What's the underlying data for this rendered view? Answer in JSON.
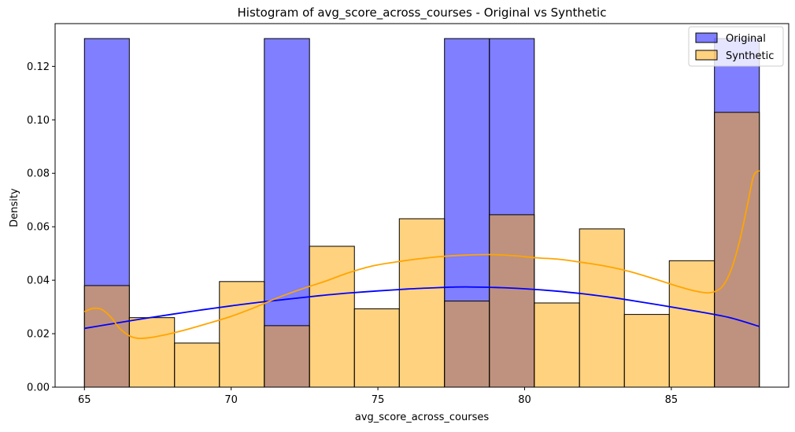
{
  "chart_data": {
    "type": "histogram",
    "title": "Histogram of avg_score_across_courses - Original vs Synthetic",
    "xlabel": "avg_score_across_courses",
    "ylabel": "Density",
    "xlim": [
      64.0,
      89.0
    ],
    "ylim": [
      0,
      0.136
    ],
    "xticks": [
      65,
      70,
      75,
      80,
      85
    ],
    "yticks": [
      0.0,
      0.02,
      0.04,
      0.06,
      0.08,
      0.1,
      0.12
    ],
    "ytick_labels": [
      "0.00",
      "0.02",
      "0.04",
      "0.06",
      "0.08",
      "0.10",
      "0.12"
    ],
    "grid": false,
    "legend_position": "top-right",
    "series": [
      {
        "name": "Original",
        "color": "#0000ff",
        "fill_opacity": 0.5,
        "line_color": "#0000ff",
        "bins": [
          {
            "x0": 65.0,
            "x1": 66.53,
            "density": 0.1304
          },
          {
            "x0": 71.13,
            "x1": 72.67,
            "density": 0.1304
          },
          {
            "x0": 77.27,
            "x1": 78.8,
            "density": 0.1304
          },
          {
            "x0": 78.8,
            "x1": 80.33,
            "density": 0.1304
          },
          {
            "x0": 86.47,
            "x1": 88.0,
            "density": 0.1304
          }
        ],
        "kde": [
          [
            65.0,
            0.022
          ],
          [
            66.0,
            0.0238
          ],
          [
            67.0,
            0.0256
          ],
          [
            68.0,
            0.0273
          ],
          [
            69.0,
            0.0289
          ],
          [
            70.0,
            0.0304
          ],
          [
            71.0,
            0.0318
          ],
          [
            72.0,
            0.033
          ],
          [
            73.0,
            0.0342
          ],
          [
            74.0,
            0.0352
          ],
          [
            75.0,
            0.036
          ],
          [
            76.0,
            0.0367
          ],
          [
            77.0,
            0.0372
          ],
          [
            77.5,
            0.0374
          ],
          [
            78.0,
            0.0375
          ],
          [
            79.0,
            0.0373
          ],
          [
            80.0,
            0.0368
          ],
          [
            81.0,
            0.036
          ],
          [
            82.0,
            0.0349
          ],
          [
            83.0,
            0.0335
          ],
          [
            84.0,
            0.0318
          ],
          [
            85.0,
            0.03
          ],
          [
            86.0,
            0.0281
          ],
          [
            87.0,
            0.026
          ],
          [
            88.0,
            0.0227
          ]
        ]
      },
      {
        "name": "Synthetic",
        "color": "#ffa500",
        "fill_opacity": 0.5,
        "line_color": "#ffa500",
        "bins": [
          {
            "x0": 65.0,
            "x1": 66.53,
            "density": 0.038
          },
          {
            "x0": 66.53,
            "x1": 68.07,
            "density": 0.026
          },
          {
            "x0": 68.07,
            "x1": 69.6,
            "density": 0.0165
          },
          {
            "x0": 69.6,
            "x1": 71.13,
            "density": 0.0395
          },
          {
            "x0": 71.13,
            "x1": 72.67,
            "density": 0.023
          },
          {
            "x0": 72.67,
            "x1": 74.2,
            "density": 0.0527
          },
          {
            "x0": 74.2,
            "x1": 75.73,
            "density": 0.0293
          },
          {
            "x0": 75.73,
            "x1": 77.27,
            "density": 0.063
          },
          {
            "x0": 77.27,
            "x1": 78.8,
            "density": 0.0322
          },
          {
            "x0": 78.8,
            "x1": 80.33,
            "density": 0.0645
          },
          {
            "x0": 80.33,
            "x1": 81.87,
            "density": 0.0315
          },
          {
            "x0": 81.87,
            "x1": 83.4,
            "density": 0.0592
          },
          {
            "x0": 83.4,
            "x1": 84.93,
            "density": 0.0272
          },
          {
            "x0": 84.93,
            "x1": 86.47,
            "density": 0.0473
          },
          {
            "x0": 86.47,
            "x1": 88.0,
            "density": 0.1028
          }
        ],
        "kde": [
          [
            65.0,
            0.0282
          ],
          [
            65.3,
            0.0295
          ],
          [
            65.6,
            0.029
          ],
          [
            65.9,
            0.0262
          ],
          [
            66.2,
            0.022
          ],
          [
            66.5,
            0.0194
          ],
          [
            66.8,
            0.0183
          ],
          [
            67.2,
            0.0185
          ],
          [
            67.8,
            0.0197
          ],
          [
            68.5,
            0.0216
          ],
          [
            69.2,
            0.0238
          ],
          [
            70.0,
            0.0265
          ],
          [
            70.8,
            0.0298
          ],
          [
            71.6,
            0.0335
          ],
          [
            72.4,
            0.0367
          ],
          [
            73.2,
            0.0396
          ],
          [
            74.0,
            0.0428
          ],
          [
            74.8,
            0.0453
          ],
          [
            75.6,
            0.0468
          ],
          [
            76.4,
            0.048
          ],
          [
            77.2,
            0.0489
          ],
          [
            78.0,
            0.0494
          ],
          [
            78.8,
            0.0496
          ],
          [
            79.6,
            0.0492
          ],
          [
            80.4,
            0.0484
          ],
          [
            81.2,
            0.0478
          ],
          [
            82.0,
            0.0466
          ],
          [
            82.8,
            0.0452
          ],
          [
            83.6,
            0.0432
          ],
          [
            84.4,
            0.0406
          ],
          [
            85.2,
            0.0378
          ],
          [
            85.8,
            0.036
          ],
          [
            86.3,
            0.0353
          ],
          [
            86.7,
            0.0372
          ],
          [
            87.0,
            0.0428
          ],
          [
            87.3,
            0.0535
          ],
          [
            87.6,
            0.0685
          ],
          [
            87.8,
            0.0789
          ],
          [
            88.0,
            0.081
          ]
        ]
      }
    ]
  }
}
